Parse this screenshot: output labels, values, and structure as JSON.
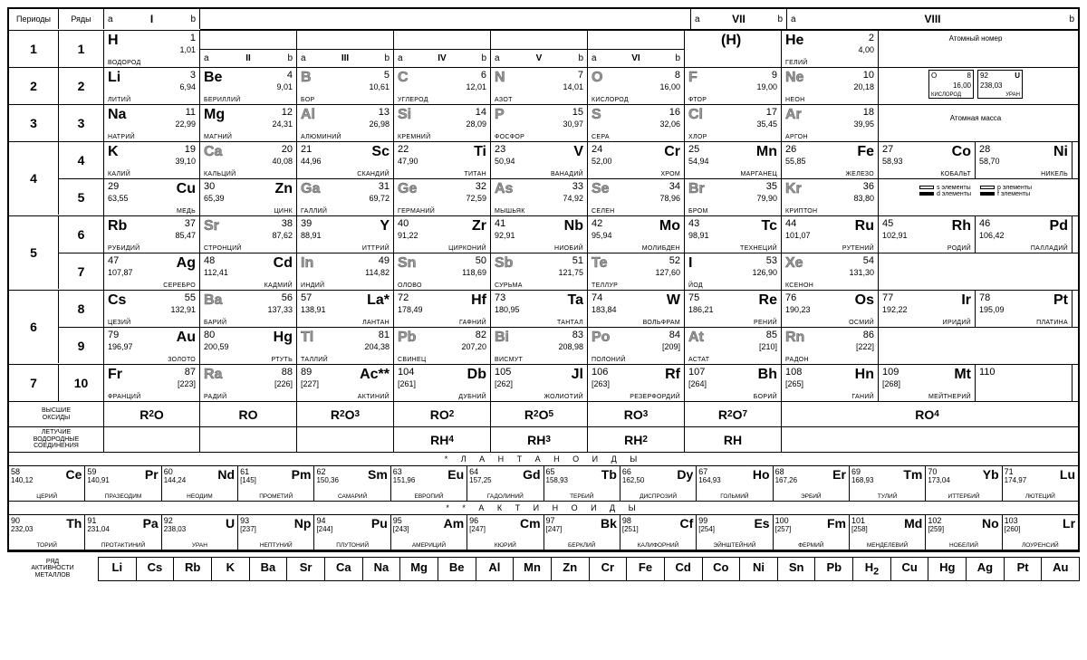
{
  "headers": {
    "periods": "Периоды",
    "rows": "Ряды",
    "groups": [
      "I",
      "II",
      "III",
      "IV",
      "V",
      "VI",
      "VII",
      "VIII"
    ],
    "a": "a",
    "b": "b"
  },
  "legend": {
    "atomic_number": "Атомный номер",
    "atomic_mass": "Атомная масса",
    "ex1": {
      "num": "8",
      "mass": "16,00",
      "sym": "O",
      "name": "КИСЛОРОД"
    },
    "ex2": {
      "num": "92",
      "mass": "238,03",
      "sym": "U",
      "name": "УРАН"
    },
    "s_el": "s элементы",
    "d_el": "d элементы",
    "p_el": "p элементы",
    "f_el": "f элементы"
  },
  "elements": {
    "H": {
      "num": "1",
      "mass": "1,01",
      "name": "ВОДОРОД",
      "sym": "H"
    },
    "He": {
      "num": "2",
      "mass": "4,00",
      "name": "ГЕЛИЙ",
      "sym": "He"
    },
    "Li": {
      "num": "3",
      "mass": "6,94",
      "name": "ЛИТИЙ",
      "sym": "Li"
    },
    "Be": {
      "num": "4",
      "mass": "9,01",
      "name": "БЕРИЛЛИЙ",
      "sym": "Be"
    },
    "B": {
      "num": "5",
      "mass": "10,61",
      "name": "БОР",
      "sym": "B"
    },
    "C": {
      "num": "6",
      "mass": "12,01",
      "name": "УГЛЕРОД",
      "sym": "C"
    },
    "N": {
      "num": "7",
      "mass": "14,01",
      "name": "АЗОТ",
      "sym": "N"
    },
    "O": {
      "num": "8",
      "mass": "16,00",
      "name": "КИСЛОРОД",
      "sym": "O"
    },
    "F": {
      "num": "9",
      "mass": "19,00",
      "name": "ФТОР",
      "sym": "F"
    },
    "Ne": {
      "num": "10",
      "mass": "20,18",
      "name": "НЕОН",
      "sym": "Ne"
    },
    "Na": {
      "num": "11",
      "mass": "22,99",
      "name": "НАТРИЙ",
      "sym": "Na"
    },
    "Mg": {
      "num": "12",
      "mass": "24,31",
      "name": "МАГНИЙ",
      "sym": "Mg"
    },
    "Al": {
      "num": "13",
      "mass": "26,98",
      "name": "АЛЮМИНИЙ",
      "sym": "Al"
    },
    "Si": {
      "num": "14",
      "mass": "28,09",
      "name": "КРЕМНИЙ",
      "sym": "Si"
    },
    "P": {
      "num": "15",
      "mass": "30,97",
      "name": "ФОСФОР",
      "sym": "P"
    },
    "S": {
      "num": "16",
      "mass": "32,06",
      "name": "СЕРА",
      "sym": "S"
    },
    "Cl": {
      "num": "17",
      "mass": "35,45",
      "name": "ХЛОР",
      "sym": "Cl"
    },
    "Ar": {
      "num": "18",
      "mass": "39,95",
      "name": "АРГОН",
      "sym": "Ar"
    },
    "K": {
      "num": "19",
      "mass": "39,10",
      "name": "КАЛИЙ",
      "sym": "K"
    },
    "Ca": {
      "num": "20",
      "mass": "40,08",
      "name": "КАЛЬЦИЙ",
      "sym": "Ca"
    },
    "Sc": {
      "num": "21",
      "mass": "44,96",
      "name": "СКАНДИЙ",
      "sym": "Sc"
    },
    "Ti": {
      "num": "22",
      "mass": "47,90",
      "name": "ТИТАН",
      "sym": "Ti"
    },
    "V": {
      "num": "23",
      "mass": "50,94",
      "name": "ВАНАДИЙ",
      "sym": "V"
    },
    "Cr": {
      "num": "24",
      "mass": "52,00",
      "name": "ХРОМ",
      "sym": "Cr"
    },
    "Mn": {
      "num": "25",
      "mass": "54,94",
      "name": "МАРГАНЕЦ",
      "sym": "Mn"
    },
    "Fe": {
      "num": "26",
      "mass": "55,85",
      "name": "ЖЕЛЕЗО",
      "sym": "Fe"
    },
    "Co": {
      "num": "27",
      "mass": "58,93",
      "name": "КОБАЛЬТ",
      "sym": "Co"
    },
    "Ni": {
      "num": "28",
      "mass": "58,70",
      "name": "НИКЕЛЬ",
      "sym": "Ni"
    },
    "Cu": {
      "num": "29",
      "mass": "63,55",
      "name": "МЕДЬ",
      "sym": "Cu"
    },
    "Zn": {
      "num": "30",
      "mass": "65,39",
      "name": "ЦИНК",
      "sym": "Zn"
    },
    "Ga": {
      "num": "31",
      "mass": "69,72",
      "name": "ГАЛЛИЙ",
      "sym": "Ga"
    },
    "Ge": {
      "num": "32",
      "mass": "72,59",
      "name": "ГЕРМАНИЙ",
      "sym": "Ge"
    },
    "As": {
      "num": "33",
      "mass": "74,92",
      "name": "МЫШЬЯК",
      "sym": "As"
    },
    "Se": {
      "num": "34",
      "mass": "78,96",
      "name": "СЕЛЕН",
      "sym": "Se"
    },
    "Br": {
      "num": "35",
      "mass": "79,90",
      "name": "БРОМ",
      "sym": "Br"
    },
    "Kr": {
      "num": "36",
      "mass": "83,80",
      "name": "КРИПТОН",
      "sym": "Kr"
    },
    "Rb": {
      "num": "37",
      "mass": "85,47",
      "name": "РУБИДИЙ",
      "sym": "Rb"
    },
    "Sr": {
      "num": "38",
      "mass": "87,62",
      "name": "СТРОНЦИЙ",
      "sym": "Sr"
    },
    "Y": {
      "num": "39",
      "mass": "88,91",
      "name": "ИТТРИЙ",
      "sym": "Y"
    },
    "Zr": {
      "num": "40",
      "mass": "91,22",
      "name": "ЦИРКОНИЙ",
      "sym": "Zr"
    },
    "Nb": {
      "num": "41",
      "mass": "92,91",
      "name": "НИОБИЙ",
      "sym": "Nb"
    },
    "Mo": {
      "num": "42",
      "mass": "95,94",
      "name": "МОЛИБДЕН",
      "sym": "Mo"
    },
    "Tc": {
      "num": "43",
      "mass": "98,91",
      "name": "ТЕХНЕЦИЙ",
      "sym": "Tc"
    },
    "Ru": {
      "num": "44",
      "mass": "101,07",
      "name": "РУТЕНИЙ",
      "sym": "Ru"
    },
    "Rh": {
      "num": "45",
      "mass": "102,91",
      "name": "РОДИЙ",
      "sym": "Rh"
    },
    "Pd": {
      "num": "46",
      "mass": "106,42",
      "name": "ПАЛЛАДИЙ",
      "sym": "Pd"
    },
    "Ag": {
      "num": "47",
      "mass": "107,87",
      "name": "СЕРЕБРО",
      "sym": "Ag"
    },
    "Cd": {
      "num": "48",
      "mass": "112,41",
      "name": "КАДМИЙ",
      "sym": "Cd"
    },
    "In": {
      "num": "49",
      "mass": "114,82",
      "name": "ИНДИЙ",
      "sym": "In"
    },
    "Sn": {
      "num": "50",
      "mass": "118,69",
      "name": "ОЛОВО",
      "sym": "Sn"
    },
    "Sb": {
      "num": "51",
      "mass": "121,75",
      "name": "СУРЬМА",
      "sym": "Sb"
    },
    "Te": {
      "num": "52",
      "mass": "127,60",
      "name": "ТЕЛЛУР",
      "sym": "Te"
    },
    "I": {
      "num": "53",
      "mass": "126,90",
      "name": "ЙОД",
      "sym": "I"
    },
    "Xe": {
      "num": "54",
      "mass": "131,30",
      "name": "КСЕНОН",
      "sym": "Xe"
    },
    "Cs": {
      "num": "55",
      "mass": "132,91",
      "name": "ЦЕЗИЙ",
      "sym": "Cs"
    },
    "Ba": {
      "num": "56",
      "mass": "137,33",
      "name": "БАРИЙ",
      "sym": "Ba"
    },
    "La": {
      "num": "57",
      "mass": "138,91",
      "name": "ЛАНТАН",
      "sym": "La*"
    },
    "Hf": {
      "num": "72",
      "mass": "178,49",
      "name": "ГАФНИЙ",
      "sym": "Hf"
    },
    "Ta": {
      "num": "73",
      "mass": "180,95",
      "name": "ТАНТАЛ",
      "sym": "Ta"
    },
    "W": {
      "num": "74",
      "mass": "183,84",
      "name": "ВОЛЬФРАМ",
      "sym": "W"
    },
    "Re": {
      "num": "75",
      "mass": "186,21",
      "name": "РЕНИЙ",
      "sym": "Re"
    },
    "Os": {
      "num": "76",
      "mass": "190,23",
      "name": "ОСМИЙ",
      "sym": "Os"
    },
    "Ir": {
      "num": "77",
      "mass": "192,22",
      "name": "ИРИДИЙ",
      "sym": "Ir"
    },
    "Pt": {
      "num": "78",
      "mass": "195,09",
      "name": "ПЛАТИНА",
      "sym": "Pt"
    },
    "Au": {
      "num": "79",
      "mass": "196,97",
      "name": "ЗОЛОТО",
      "sym": "Au"
    },
    "Hg": {
      "num": "80",
      "mass": "200,59",
      "name": "РТУТЬ",
      "sym": "Hg"
    },
    "Tl": {
      "num": "81",
      "mass": "204,38",
      "name": "ТАЛЛИЙ",
      "sym": "Tl"
    },
    "Pb": {
      "num": "82",
      "mass": "207,20",
      "name": "СВИНЕЦ",
      "sym": "Pb"
    },
    "Bi": {
      "num": "83",
      "mass": "208,98",
      "name": "ВИСМУТ",
      "sym": "Bi"
    },
    "Po": {
      "num": "84",
      "mass": "[209]",
      "name": "ПОЛОНИЙ",
      "sym": "Po"
    },
    "At": {
      "num": "85",
      "mass": "[210]",
      "name": "АСТАТ",
      "sym": "At"
    },
    "Rn": {
      "num": "86",
      "mass": "[222]",
      "name": "РАДОН",
      "sym": "Rn"
    },
    "Fr": {
      "num": "87",
      "mass": "[223]",
      "name": "ФРАНЦИЙ",
      "sym": "Fr"
    },
    "Ra": {
      "num": "88",
      "mass": "[226]",
      "name": "РАДИЙ",
      "sym": "Ra"
    },
    "Ac": {
      "num": "89",
      "mass": "[227]",
      "name": "АКТИНИЙ",
      "sym": "Ac**"
    },
    "Db": {
      "num": "104",
      "mass": "[261]",
      "name": "ДУБНИЙ",
      "sym": "Db"
    },
    "Jl": {
      "num": "105",
      "mass": "[262]",
      "name": "ЖОЛИОТИЙ",
      "sym": "Jl"
    },
    "Rf": {
      "num": "106",
      "mass": "[263]",
      "name": "РЕЗЕРФОРДИЙ",
      "sym": "Rf"
    },
    "Bh": {
      "num": "107",
      "mass": "[264]",
      "name": "БОРИЙ",
      "sym": "Bh"
    },
    "Hn": {
      "num": "108",
      "mass": "[265]",
      "name": "ГАНИЙ",
      "sym": "Hn"
    },
    "Mt": {
      "num": "109",
      "mass": "[268]",
      "name": "МЕЙТНЕРИЙ",
      "sym": "Mt"
    },
    "E110": {
      "num": "110",
      "mass": "",
      "name": "",
      "sym": ""
    },
    "Hp": {
      "sym": "(H)"
    }
  },
  "lanthanides": [
    {
      "num": "58",
      "mass": "140,12",
      "sym": "Ce",
      "name": "ЦЕРИЙ"
    },
    {
      "num": "59",
      "mass": "140,91",
      "sym": "Pr",
      "name": "ПРАЗЕОДИМ"
    },
    {
      "num": "60",
      "mass": "144,24",
      "sym": "Nd",
      "name": "НЕОДИМ"
    },
    {
      "num": "61",
      "mass": "[145]",
      "sym": "Pm",
      "name": "ПРОМЕТИЙ"
    },
    {
      "num": "62",
      "mass": "150,36",
      "sym": "Sm",
      "name": "САМАРИЙ"
    },
    {
      "num": "63",
      "mass": "151,96",
      "sym": "Eu",
      "name": "ЕВРОПИЙ"
    },
    {
      "num": "64",
      "mass": "157,25",
      "sym": "Gd",
      "name": "ГАДОЛИНИЙ"
    },
    {
      "num": "65",
      "mass": "158,93",
      "sym": "Tb",
      "name": "ТЕРБИЙ"
    },
    {
      "num": "66",
      "mass": "162,50",
      "sym": "Dy",
      "name": "ДИСПРОЗИЙ"
    },
    {
      "num": "67",
      "mass": "164,93",
      "sym": "Ho",
      "name": "ГОЛЬМИЙ"
    },
    {
      "num": "68",
      "mass": "167,26",
      "sym": "Er",
      "name": "ЭРБИЙ"
    },
    {
      "num": "69",
      "mass": "168,93",
      "sym": "Tm",
      "name": "ТУЛИЙ"
    },
    {
      "num": "70",
      "mass": "173,04",
      "sym": "Yb",
      "name": "ИТТЕРБИЙ"
    },
    {
      "num": "71",
      "mass": "174,97",
      "sym": "Lu",
      "name": "ЛЮТЕЦИЙ"
    }
  ],
  "actinides": [
    {
      "num": "90",
      "mass": "232,03",
      "sym": "Th",
      "name": "ТОРИЙ"
    },
    {
      "num": "91",
      "mass": "231,04",
      "sym": "Pa",
      "name": "ПРОТАКТИНИЙ"
    },
    {
      "num": "92",
      "mass": "238,03",
      "sym": "U",
      "name": "УРАН"
    },
    {
      "num": "93",
      "mass": "[237]",
      "sym": "Np",
      "name": "НЕПТУНИЙ"
    },
    {
      "num": "94",
      "mass": "[244]",
      "sym": "Pu",
      "name": "ПЛУТОНИЙ"
    },
    {
      "num": "95",
      "mass": "[243]",
      "sym": "Am",
      "name": "АМЕРИЦИЙ"
    },
    {
      "num": "96",
      "mass": "[247]",
      "sym": "Cm",
      "name": "КЮРИЙ"
    },
    {
      "num": "97",
      "mass": "[247]",
      "sym": "Bk",
      "name": "БЕРКЛИЙ"
    },
    {
      "num": "98",
      "mass": "[251]",
      "sym": "Cf",
      "name": "КАЛИФОРНИЙ"
    },
    {
      "num": "99",
      "mass": "[254]",
      "sym": "Es",
      "name": "ЭЙНШТЕЙНИЙ"
    },
    {
      "num": "100",
      "mass": "[257]",
      "sym": "Fm",
      "name": "ФЕРМИЙ"
    },
    {
      "num": "101",
      "mass": "[258]",
      "sym": "Md",
      "name": "МЕНДЕЛЕВИЙ"
    },
    {
      "num": "102",
      "mass": "[259]",
      "sym": "No",
      "name": "НОБЕЛИЙ"
    },
    {
      "num": "103",
      "mass": "[260]",
      "sym": "Lr",
      "name": "ЛОУРЕНСИЙ"
    }
  ],
  "oxides": {
    "label": "ВЫСШИЕ\nОКСИДЫ",
    "formulas": [
      "R₂O",
      "RO",
      "R₂O₃",
      "RO₂",
      "R₂O₅",
      "RO₃",
      "R₂O₇",
      "RO₄"
    ]
  },
  "hydrides": {
    "label": "ЛЕТУЧИЕ\nВОДОРОДНЫЕ\nСОЕДИНЕНИЯ",
    "formulas": [
      "",
      "",
      "",
      "RH₄",
      "RH₃",
      "RH₂",
      "RH",
      ""
    ]
  },
  "series_titles": {
    "lan": "* Л А Н Т А Н О И Д Ы",
    "act": "* * А К Т И Н О И Д Ы"
  },
  "activity": {
    "label": "РЯД\nАКТИВНОСТИ\nМЕТАЛЛОВ",
    "list": [
      "Li",
      "Cs",
      "Rb",
      "K",
      "Ba",
      "Sr",
      "Ca",
      "Na",
      "Mg",
      "Be",
      "Al",
      "Mn",
      "Zn",
      "Cr",
      "Fe",
      "Cd",
      "Co",
      "Ni",
      "Sn",
      "Pb",
      "H₂",
      "Cu",
      "Hg",
      "Ag",
      "Pt",
      "Au"
    ]
  },
  "layout": {
    "rows": [
      {
        "period": "1",
        "row": "1",
        "cells": [
          [
            "H",
            "a"
          ],
          null,
          null,
          null,
          null,
          null,
          [
            "Hp",
            "p"
          ],
          [
            "He",
            "a"
          ]
        ],
        "g8extra": "legend"
      },
      {
        "period": "2",
        "row": "2",
        "cells": [
          [
            "Li",
            "a"
          ],
          [
            "Be",
            "a"
          ],
          [
            "B",
            "a",
            "o"
          ],
          [
            "C",
            "a",
            "o"
          ],
          [
            "N",
            "a",
            "o"
          ],
          [
            "O",
            "a",
            "o"
          ],
          [
            "F",
            "a",
            "o"
          ],
          [
            "Ne",
            "a",
            "o"
          ]
        ],
        "g8extra": "legend2"
      },
      {
        "period": "3",
        "row": "3",
        "cells": [
          [
            "Na",
            "a"
          ],
          [
            "Mg",
            "a"
          ],
          [
            "Al",
            "a",
            "o"
          ],
          [
            "Si",
            "a",
            "o"
          ],
          [
            "P",
            "a",
            "o"
          ],
          [
            "S",
            "a",
            "o"
          ],
          [
            "Cl",
            "a",
            "o"
          ],
          [
            "Ar",
            "a",
            "o"
          ]
        ],
        "g8extra": "legend3"
      },
      {
        "period": "4",
        "row": "4",
        "cells": [
          [
            "K",
            "a"
          ],
          [
            "Ca",
            "a",
            "o"
          ],
          [
            "Sc",
            "b"
          ],
          [
            "Ti",
            "b"
          ],
          [
            "V",
            "b"
          ],
          [
            "Cr",
            "b"
          ],
          [
            "Mn",
            "b"
          ],
          [
            "Fe",
            "b"
          ],
          [
            "Co",
            "b"
          ],
          [
            "Ni",
            "b"
          ]
        ]
      },
      {
        "period": "",
        "row": "5",
        "cells": [
          [
            "Cu",
            "b"
          ],
          [
            "Zn",
            "b"
          ],
          [
            "Ga",
            "a",
            "o"
          ],
          [
            "Ge",
            "a",
            "o"
          ],
          [
            "As",
            "a",
            "o"
          ],
          [
            "Se",
            "a",
            "o"
          ],
          [
            "Br",
            "a",
            "o"
          ],
          [
            "Kr",
            "a",
            "o"
          ]
        ],
        "g8extra": "legend4"
      },
      {
        "period": "5",
        "row": "6",
        "cells": [
          [
            "Rb",
            "a"
          ],
          [
            "Sr",
            "a",
            "o"
          ],
          [
            "Y",
            "b"
          ],
          [
            "Zr",
            "b"
          ],
          [
            "Nb",
            "b"
          ],
          [
            "Mo",
            "b"
          ],
          [
            "Tc",
            "b"
          ],
          [
            "Ru",
            "b"
          ],
          [
            "Rh",
            "b"
          ],
          [
            "Pd",
            "b"
          ]
        ]
      },
      {
        "period": "",
        "row": "7",
        "cells": [
          [
            "Ag",
            "b"
          ],
          [
            "Cd",
            "b"
          ],
          [
            "In",
            "a",
            "o"
          ],
          [
            "Sn",
            "a",
            "o"
          ],
          [
            "Sb",
            "a",
            "o"
          ],
          [
            "Te",
            "a",
            "o"
          ],
          [
            "I",
            "a"
          ],
          [
            "Xe",
            "a",
            "o"
          ]
        ],
        "g8extra": "empty"
      },
      {
        "period": "6",
        "row": "8",
        "cells": [
          [
            "Cs",
            "a"
          ],
          [
            "Ba",
            "a",
            "o"
          ],
          [
            "La",
            "b"
          ],
          [
            "Hf",
            "b"
          ],
          [
            "Ta",
            "b"
          ],
          [
            "W",
            "b"
          ],
          [
            "Re",
            "b"
          ],
          [
            "Os",
            "b"
          ],
          [
            "Ir",
            "b"
          ],
          [
            "Pt",
            "b"
          ]
        ]
      },
      {
        "period": "",
        "row": "9",
        "cells": [
          [
            "Au",
            "b"
          ],
          [
            "Hg",
            "b"
          ],
          [
            "Tl",
            "a",
            "o"
          ],
          [
            "Pb",
            "a",
            "o"
          ],
          [
            "Bi",
            "a",
            "o"
          ],
          [
            "Po",
            "a",
            "o"
          ],
          [
            "At",
            "a",
            "o"
          ],
          [
            "Rn",
            "a",
            "o"
          ]
        ],
        "g8extra": "empty"
      },
      {
        "period": "7",
        "row": "10",
        "cells": [
          [
            "Fr",
            "a"
          ],
          [
            "Ra",
            "a",
            "o"
          ],
          [
            "Ac",
            "b"
          ],
          [
            "Db",
            "b"
          ],
          [
            "Jl",
            "b"
          ],
          [
            "Rf",
            "b"
          ],
          [
            "Bh",
            "b"
          ],
          [
            "Hn",
            "b"
          ],
          [
            "Mt",
            "b"
          ],
          [
            "E110",
            "b"
          ]
        ]
      }
    ]
  }
}
